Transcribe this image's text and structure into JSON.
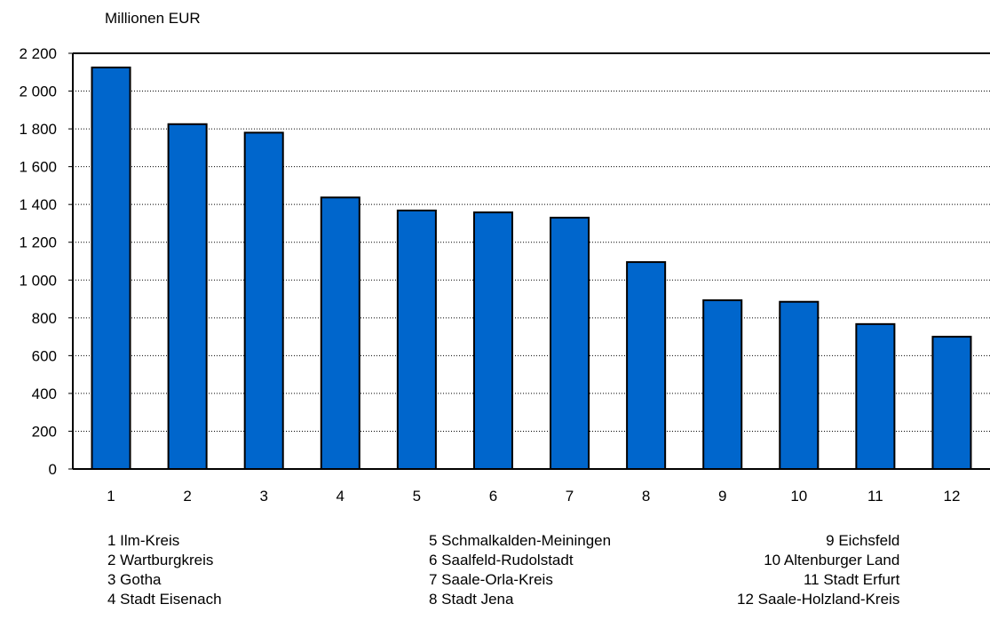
{
  "chart_data": {
    "type": "bar",
    "ylabel": "Millionen EUR",
    "categories": [
      "1",
      "2",
      "3",
      "4",
      "5",
      "6",
      "7",
      "8",
      "9",
      "10",
      "11",
      "12"
    ],
    "values": [
      2125,
      1825,
      1780,
      1437,
      1368,
      1358,
      1330,
      1095,
      893,
      885,
      767,
      700
    ],
    "ylim": [
      0,
      2200
    ],
    "yticks": [
      0,
      200,
      400,
      600,
      800,
      1000,
      1200,
      1400,
      1600,
      1800,
      2000,
      2200
    ],
    "ytick_labels": [
      "0",
      "200",
      "400",
      "600",
      "800",
      "1 000",
      "1 200",
      "1 400",
      "1 600",
      "1 800",
      "2 000",
      "2 200"
    ],
    "grid": true,
    "bar_color": "#0066CC",
    "legend": [
      [
        "1 Ilm-Kreis",
        "2 Wartburgkreis",
        "3 Gotha",
        "4 Stadt Eisenach"
      ],
      [
        "5 Schmalkalden-Meiningen",
        "6 Saalfeld-Rudolstadt",
        "7 Saale-Orla-Kreis",
        "8 Stadt Jena"
      ],
      [
        "9 Eichsfeld",
        "10 Altenburger Land",
        "11 Stadt Erfurt",
        "12 Saale-Holzland-Kreis"
      ]
    ]
  }
}
